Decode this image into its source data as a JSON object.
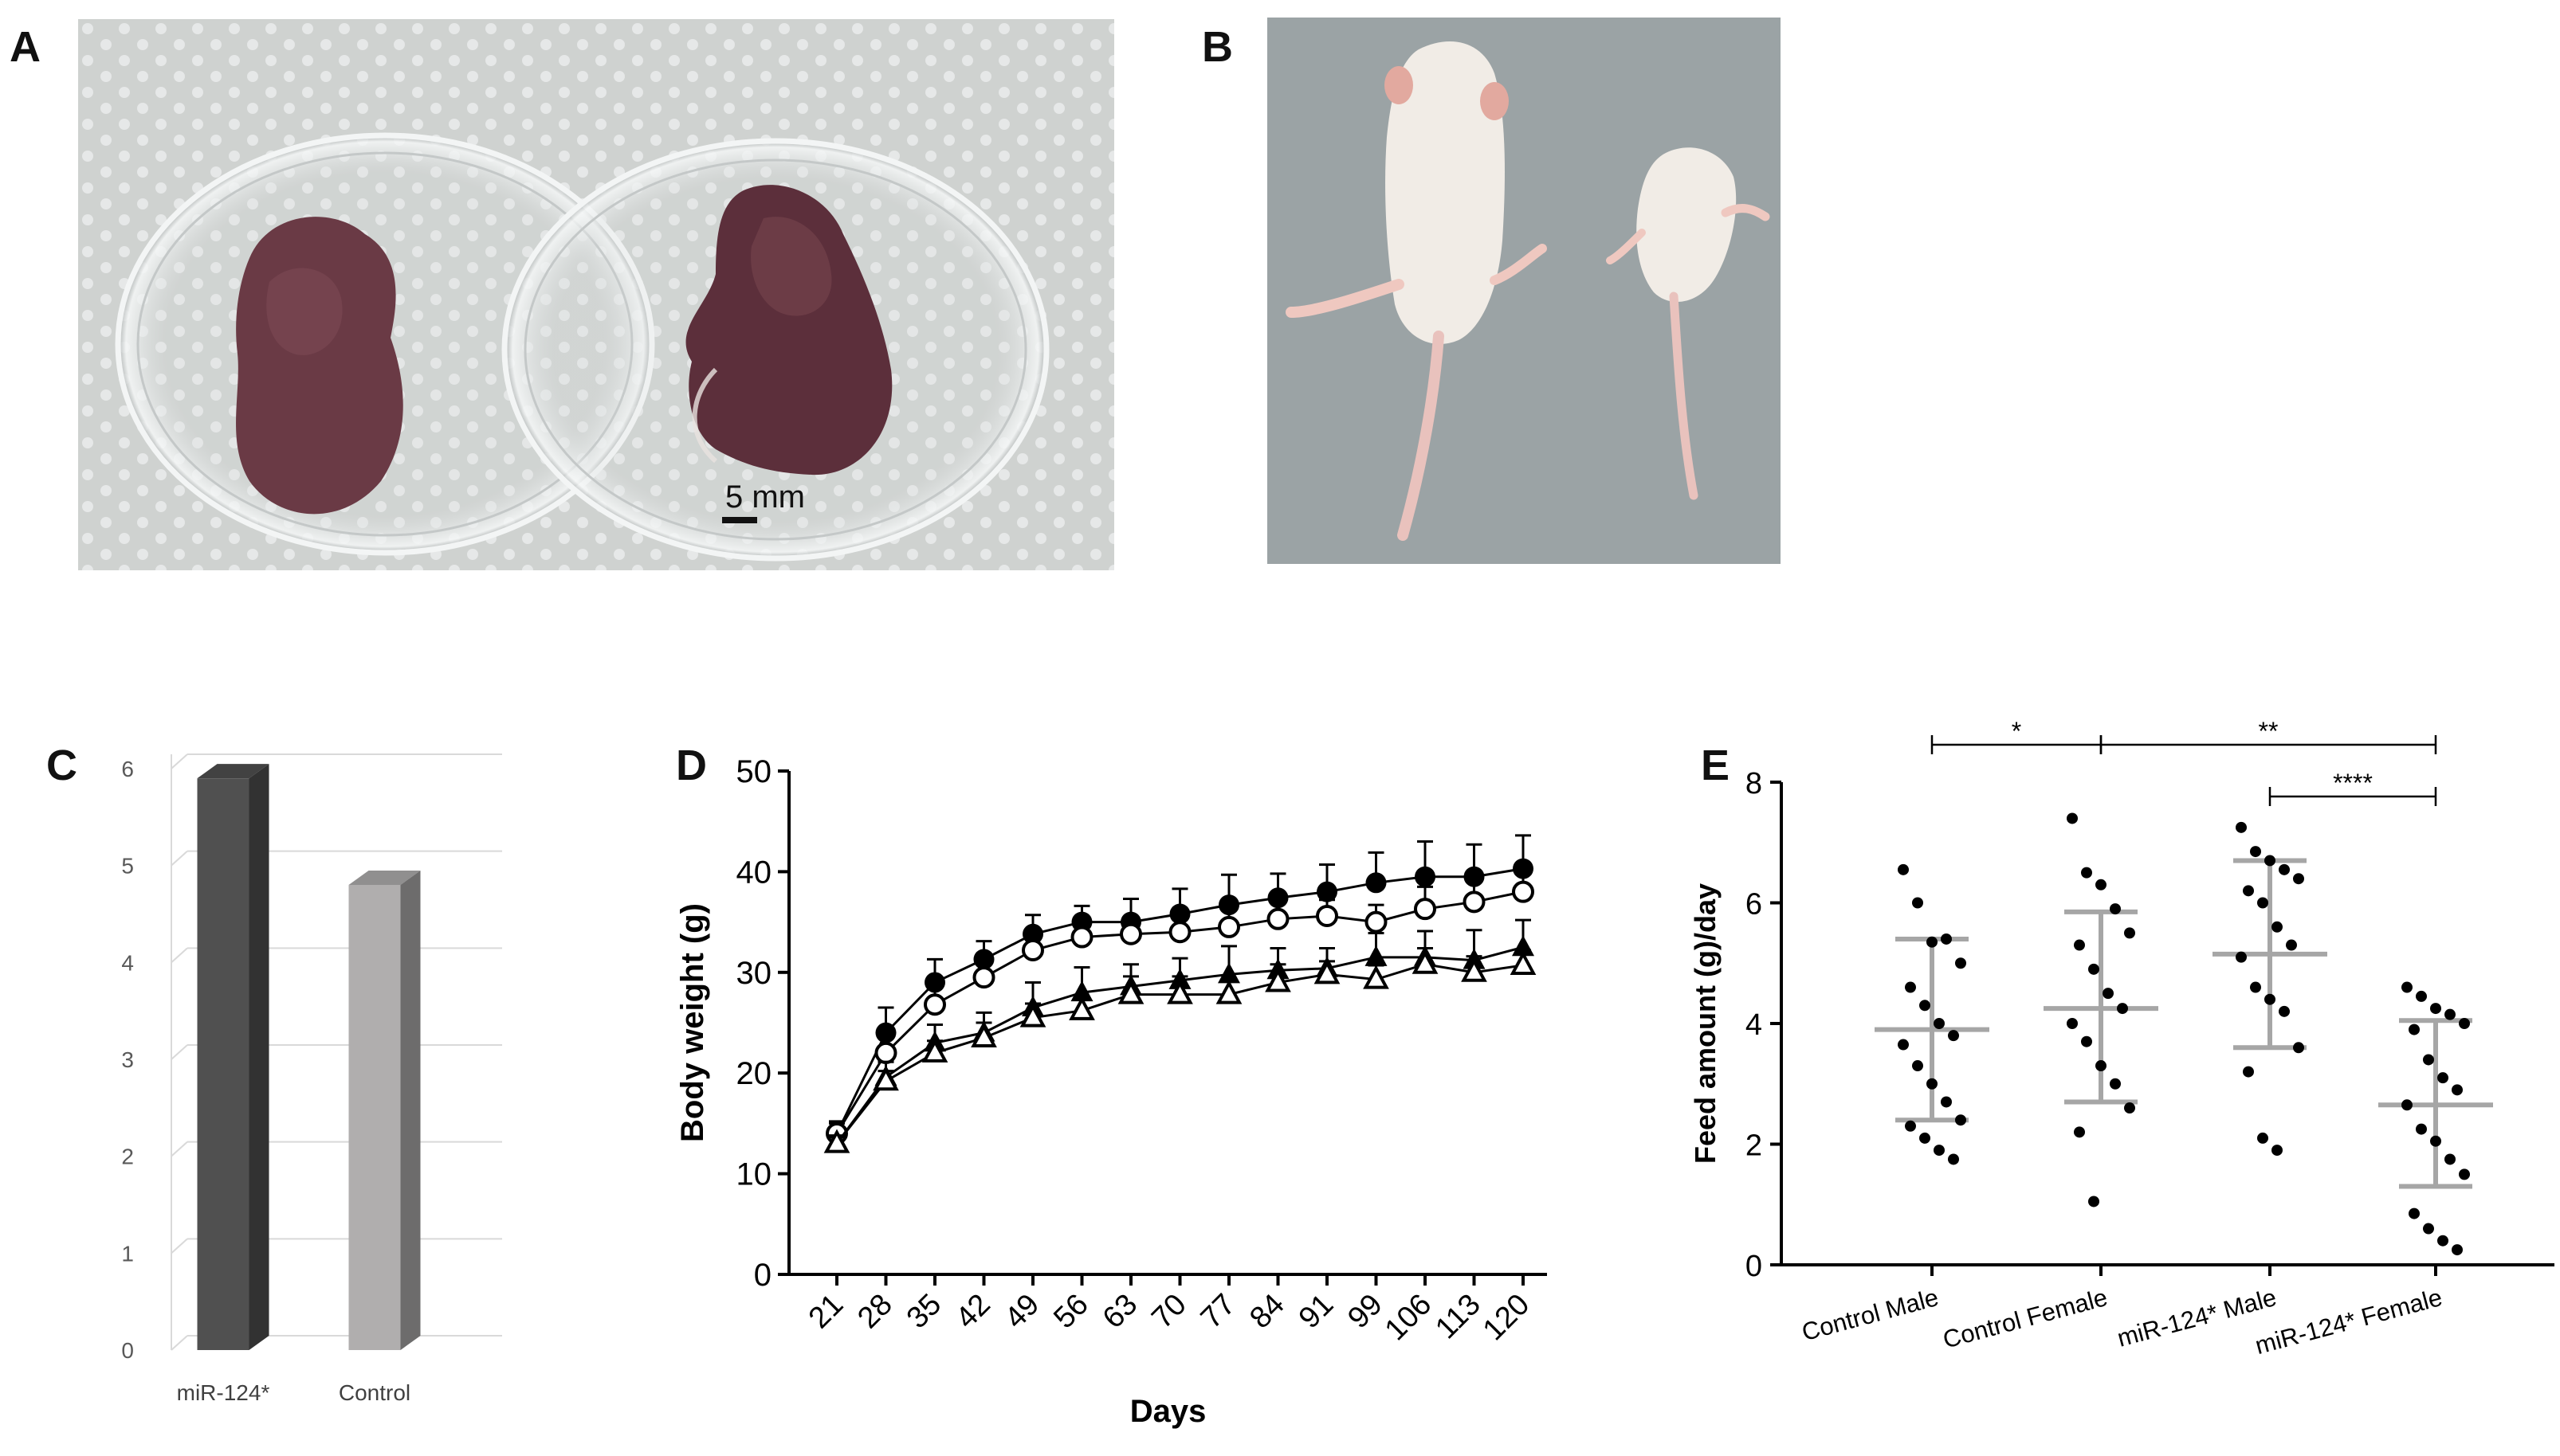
{
  "panels": {
    "A": {
      "letter": "A",
      "scale_bar_label": "5 mm",
      "colors": {
        "background": "#cfd2d0",
        "paper_dot": "#e8eaea",
        "dish_rim": "#f4f6f6",
        "specimen": "#6a3a45",
        "specimen_shadow": "#4b2430"
      }
    },
    "B": {
      "letter": "B",
      "colors": {
        "background": "#9aa2a4",
        "mouse_body": "#f1ece6",
        "tail": "#e9c2bd",
        "ear": "#e2a99f"
      }
    },
    "C": {
      "letter": "C"
    },
    "D": {
      "letter": "D"
    },
    "E": {
      "letter": "E"
    }
  },
  "chart_data": [
    {
      "panel": "C",
      "type": "bar",
      "categories": [
        "miR-124*",
        "Control"
      ],
      "values": [
        5.9,
        4.8
      ],
      "y_ticks": [
        "0",
        "1",
        "2",
        "3",
        "4",
        "5",
        "6"
      ],
      "ylim": [
        0,
        6
      ],
      "grid": true,
      "colors": [
        "#505050",
        "#b0aeae"
      ]
    },
    {
      "panel": "D",
      "type": "line",
      "xlabel": "Days",
      "ylabel": "Body weight (g)",
      "x": [
        21,
        28,
        35,
        42,
        49,
        56,
        63,
        70,
        77,
        84,
        91,
        99,
        106,
        113,
        120
      ],
      "x_tick_labels": [
        "21",
        "28",
        "35",
        "42",
        "49",
        "56",
        "63",
        "70",
        "77",
        "84",
        "91",
        "99",
        "106",
        "113",
        "120"
      ],
      "y_ticks": [
        "0",
        "10",
        "20",
        "30",
        "40",
        "50"
      ],
      "ylim": [
        0,
        50
      ],
      "grid": false,
      "series": [
        {
          "marker": "filled-circle",
          "values": [
            14,
            24,
            29,
            31.3,
            33.8,
            35,
            35,
            35.8,
            36.7,
            37.4,
            38,
            38.9,
            39.5,
            39.5,
            40.3
          ],
          "errors": [
            1.2,
            2.5,
            2.3,
            1.8,
            1.9,
            1.6,
            2.3,
            2.5,
            3,
            2.4,
            2.7,
            3,
            3.5,
            3.2,
            3.3
          ]
        },
        {
          "marker": "open-circle",
          "values": [
            14,
            22,
            26.8,
            29.5,
            32.2,
            33.5,
            33.8,
            34,
            34.5,
            35.3,
            35.6,
            35,
            36.3,
            37,
            38
          ],
          "errors": [
            1,
            1.5,
            1.8,
            1.5,
            1.6,
            1.3,
            1.5,
            1.8,
            1.9,
            1.7,
            1.6,
            1.7,
            2.2,
            2.3,
            2.4
          ]
        },
        {
          "marker": "filled-triangle",
          "values": [
            13,
            19.6,
            23,
            24,
            26.5,
            28,
            28.6,
            29.2,
            29.8,
            30.2,
            30.4,
            31.5,
            31.5,
            31.2,
            32.5
          ],
          "errors": [
            0.8,
            1.5,
            1.8,
            2,
            2.5,
            2.5,
            2.2,
            2.2,
            2.8,
            2.2,
            2,
            2.4,
            2.6,
            3,
            2.7
          ]
        },
        {
          "marker": "open-triangle",
          "values": [
            13,
            19.2,
            22,
            23.5,
            25.5,
            26.2,
            27.8,
            27.8,
            27.8,
            29,
            29.8,
            29.3,
            30.8,
            30,
            30.7
          ],
          "errors": [
            0.6,
            1,
            1.2,
            1.5,
            1.4,
            1.4,
            1.8,
            1.8,
            1.6,
            1.8,
            1.3,
            1.4,
            1.6,
            1.6,
            1.5
          ]
        }
      ]
    },
    {
      "panel": "E",
      "type": "scatter",
      "ylabel": "Feed amount (g)/day",
      "categories": [
        "Control Male",
        "Control Female",
        "miR-124* Male",
        "miR-124* Female"
      ],
      "y_ticks": [
        "0",
        "2",
        "4",
        "6",
        "8"
      ],
      "ylim": [
        0,
        8
      ],
      "grid": false,
      "groups": [
        {
          "mean": 3.9,
          "sd_low": 2.4,
          "sd_high": 5.4,
          "points": [
            6.55,
            6.0,
            5.35,
            5.4,
            5.0,
            4.6,
            4.3,
            4.0,
            3.8,
            3.65,
            3.3,
            3.0,
            2.7,
            2.4,
            2.3,
            2.1,
            1.9,
            1.75
          ]
        },
        {
          "mean": 4.25,
          "sd_low": 2.7,
          "sd_high": 5.85,
          "points": [
            7.4,
            6.5,
            6.3,
            5.9,
            5.5,
            5.3,
            4.9,
            4.5,
            4.25,
            4.0,
            3.7,
            3.3,
            3.0,
            2.6,
            2.2,
            1.05
          ]
        },
        {
          "mean": 5.15,
          "sd_low": 3.6,
          "sd_high": 6.7,
          "points": [
            7.25,
            6.85,
            6.7,
            6.55,
            6.4,
            6.2,
            6.0,
            5.6,
            5.3,
            5.1,
            4.6,
            4.4,
            4.2,
            3.6,
            3.2,
            2.1,
            1.9
          ]
        },
        {
          "mean": 2.65,
          "sd_low": 1.3,
          "sd_high": 4.05,
          "points": [
            4.6,
            4.45,
            4.25,
            4.15,
            4.0,
            3.9,
            3.4,
            3.1,
            2.9,
            2.65,
            2.25,
            2.05,
            1.75,
            1.5,
            0.85,
            0.6,
            0.4,
            0.25
          ]
        }
      ],
      "significance": [
        {
          "from": 0,
          "to": 1,
          "level": 1,
          "label": "*"
        },
        {
          "from": 1,
          "to": 3,
          "level": 1,
          "label": "**"
        },
        {
          "from": 2,
          "to": 3,
          "level": 0,
          "label": "****"
        }
      ]
    }
  ]
}
